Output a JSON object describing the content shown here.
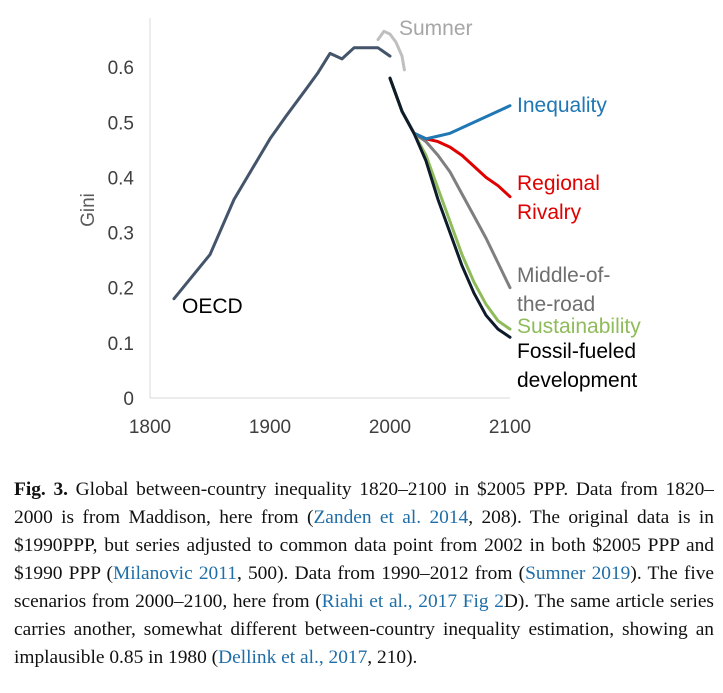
{
  "chart_data": {
    "type": "line",
    "title": "",
    "xlabel": "",
    "ylabel": "Gini",
    "xlim": [
      1800,
      2100
    ],
    "ylim": [
      0,
      0.7
    ],
    "x_ticks": [
      1800,
      1900,
      2000,
      2100
    ],
    "x_tick_labels": [
      "1800",
      "1900",
      "2000",
      "2100"
    ],
    "y_ticks": [
      0,
      0.1,
      0.2,
      0.3,
      0.4,
      0.5,
      0.6
    ],
    "y_tick_labels": [
      "0",
      "0.1",
      "0.2",
      "0.3",
      "0.4",
      "0.5",
      "0.6"
    ],
    "grid": false,
    "series": [
      {
        "name": "OECD",
        "label_lines": [
          "OECD"
        ],
        "color": "#44546a",
        "x": [
          1820,
          1850,
          1870,
          1900,
          1913,
          1930,
          1940,
          1950,
          1960,
          1970,
          1980,
          1990,
          2000
        ],
        "y": [
          0.18,
          0.26,
          0.36,
          0.47,
          0.51,
          0.56,
          0.59,
          0.625,
          0.615,
          0.635,
          0.635,
          0.635,
          0.62
        ]
      },
      {
        "name": "Sumner",
        "label_lines": [
          "Sumner"
        ],
        "color": "#bfbfbf",
        "x": [
          1990,
          1995,
          2000,
          2005,
          2010,
          2012
        ],
        "y": [
          0.65,
          0.665,
          0.66,
          0.645,
          0.62,
          0.595
        ]
      },
      {
        "name": "Inequality",
        "label_lines": [
          "Inequality"
        ],
        "color": "#1f77b4",
        "x": [
          2000,
          2010,
          2020,
          2030,
          2040,
          2050,
          2060,
          2070,
          2080,
          2090,
          2100
        ],
        "y": [
          0.58,
          0.52,
          0.48,
          0.47,
          0.475,
          0.48,
          0.49,
          0.5,
          0.51,
          0.52,
          0.53
        ]
      },
      {
        "name": "Regional Rivalry",
        "label_lines": [
          "Regional",
          "Rivalry"
        ],
        "color": "#e00000",
        "x": [
          2000,
          2010,
          2020,
          2030,
          2040,
          2050,
          2060,
          2070,
          2080,
          2090,
          2100
        ],
        "y": [
          0.58,
          0.52,
          0.48,
          0.47,
          0.465,
          0.455,
          0.44,
          0.42,
          0.4,
          0.385,
          0.365
        ]
      },
      {
        "name": "Middle-of-the-road",
        "label_lines": [
          "Middle-of-",
          "the-road"
        ],
        "color": "#7f7f7f",
        "x": [
          2000,
          2010,
          2020,
          2030,
          2040,
          2050,
          2060,
          2070,
          2080,
          2090,
          2100
        ],
        "y": [
          0.58,
          0.52,
          0.48,
          0.465,
          0.44,
          0.41,
          0.37,
          0.33,
          0.29,
          0.245,
          0.2
        ]
      },
      {
        "name": "Sustainability",
        "label_lines": [
          "Sustainability"
        ],
        "color": "#8fbc5a",
        "x": [
          2000,
          2010,
          2020,
          2030,
          2040,
          2050,
          2060,
          2070,
          2080,
          2090,
          2100
        ],
        "y": [
          0.58,
          0.52,
          0.48,
          0.44,
          0.38,
          0.32,
          0.26,
          0.21,
          0.17,
          0.14,
          0.125
        ]
      },
      {
        "name": "Fossil-fueled development",
        "label_lines": [
          "Fossil-fueled",
          "development"
        ],
        "color": "#0d1b2a",
        "x": [
          2000,
          2010,
          2020,
          2030,
          2040,
          2050,
          2060,
          2070,
          2080,
          2090,
          2100
        ],
        "y": [
          0.58,
          0.52,
          0.48,
          0.43,
          0.36,
          0.3,
          0.24,
          0.19,
          0.15,
          0.125,
          0.11
        ]
      }
    ]
  },
  "caption": {
    "fig_label": "Fig. 3.",
    "p1": " Global between-country inequality 1820–2100 in $2005 PPP. Data from 1820–2000 is from Maddison, here from (",
    "ref1": "Zanden et al. 2014",
    "p2": ", 208). The original data is in $1990PPP, but series adjusted to common data point from 2002 in both $2005 PPP and $1990 PPP (",
    "ref2": "Milanovic 2011",
    "p3": ", 500). Data from 1990–2012 from (",
    "ref3": "Sumner 2019",
    "p4": "). The five scenarios from 2000–2100, here from (",
    "ref4": "Riahi et al., 2017 Fig 2",
    "p5": "D). The same article series carries another, somewhat different between-country inequality estimation, showing an implausible 0.85 in 1980 (",
    "ref5": "Dellink et al., 2017",
    "p6": ", 210)."
  }
}
